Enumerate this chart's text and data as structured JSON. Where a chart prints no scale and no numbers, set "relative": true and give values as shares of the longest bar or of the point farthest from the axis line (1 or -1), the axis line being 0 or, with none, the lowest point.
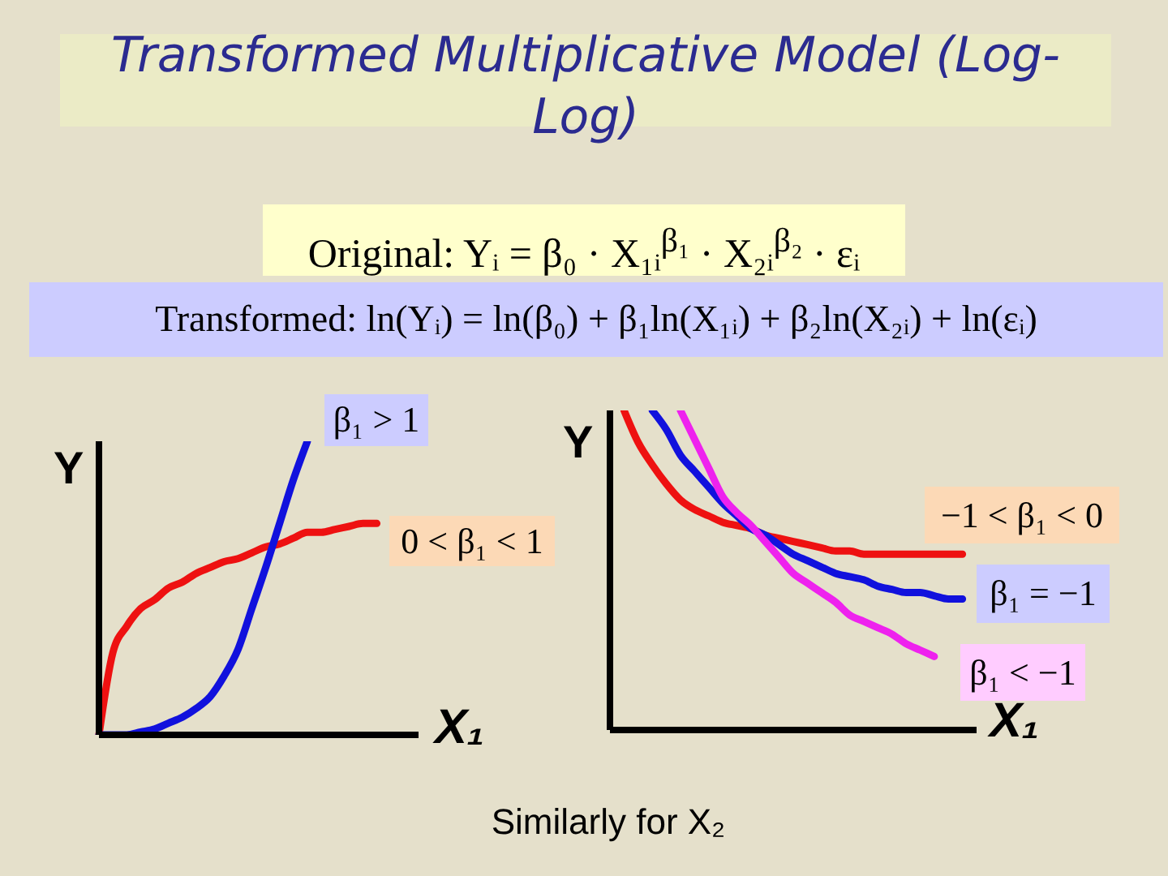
{
  "chart_data": [
    {
      "type": "line",
      "title": "Transformed Multiplicative Model (Log-Log)",
      "annotations": [
        "Original: Yᵢ = β₀ · X₁ᵢ$^{β₁}$ · X₂ᵢ$^{β₂}$ · εᵢ",
        "Transformed: ln(Yᵢ) = ln(β₀) + β₁ln(X₁ᵢ) + β₂ln(X₂ᵢ) + ln(εᵢ)"
      ],
      "xlabel": "X₁",
      "ylabel": "Y",
      "relative": true,
      "marker": "none",
      "categories": [
        null,
        null,
        null,
        null,
        null,
        null,
        null,
        null,
        null,
        null,
        null,
        null,
        null,
        null,
        null,
        null,
        null,
        null,
        null,
        null,
        null,
        null,
        null,
        null
      ],
      "series": [
        {
          "name": "0 < β₁ < 1",
          "color": "#ee1111",
          "values": [
            0,
            0.28,
            0.37,
            0.43,
            0.46,
            0.5,
            0.52,
            0.55,
            0.57,
            0.59,
            0.6,
            0.62,
            0.64,
            0.65,
            0.67,
            0.69,
            0.69,
            0.7,
            0.71,
            0.72,
            0.72,
            null,
            null,
            null
          ]
        },
        {
          "name": "β₁ > 1",
          "color": "#1111dd",
          "values": [
            0,
            0,
            0,
            0.01,
            0.02,
            0.04,
            0.06,
            0.09,
            0.13,
            0.2,
            0.29,
            0.43,
            0.57,
            0.72,
            0.87,
            1,
            null,
            null,
            null,
            null,
            null,
            null,
            null,
            null
          ]
        }
      ]
    },
    {
      "type": "line",
      "annotations": [
        "Similarly for X₂"
      ],
      "xlabel": "X₁",
      "ylabel": "Y",
      "relative": true,
      "marker": "none",
      "categories": [
        null,
        null,
        null,
        null,
        null,
        null,
        null,
        null,
        null,
        null,
        null,
        null,
        null,
        null,
        null,
        null,
        null,
        null,
        null,
        null,
        null,
        null,
        null,
        null,
        null,
        null,
        null
      ],
      "series": [
        {
          "name": "−1 < β₁ < 0",
          "color": "#ee1111",
          "values": [
            null,
            1,
            0.9,
            0.83,
            0.77,
            0.72,
            0.69,
            0.67,
            0.65,
            0.64,
            0.63,
            0.61,
            0.6,
            0.59,
            0.58,
            0.57,
            0.56,
            0.56,
            0.55,
            0.55,
            0.55,
            0.55,
            0.55,
            0.55,
            0.55,
            0.55,
            null
          ]
        },
        {
          "name": "β₁ = −1",
          "color": "#1111dd",
          "values": [
            null,
            null,
            null,
            1,
            0.94,
            0.86,
            0.81,
            0.76,
            0.71,
            0.67,
            0.63,
            0.61,
            0.58,
            0.55,
            0.53,
            0.51,
            0.49,
            0.48,
            0.47,
            0.45,
            0.44,
            0.43,
            0.43,
            0.42,
            0.41,
            0.41,
            null
          ]
        },
        {
          "name": "β₁ < −1",
          "color": "#ee22ee",
          "values": [
            null,
            null,
            null,
            null,
            null,
            1,
            0.91,
            0.82,
            0.73,
            0.68,
            0.64,
            0.59,
            0.54,
            0.49,
            0.46,
            0.43,
            0.4,
            0.36,
            0.34,
            0.32,
            0.3,
            0.27,
            0.25,
            0.23,
            null,
            null,
            null
          ]
        }
      ]
    }
  ]
}
